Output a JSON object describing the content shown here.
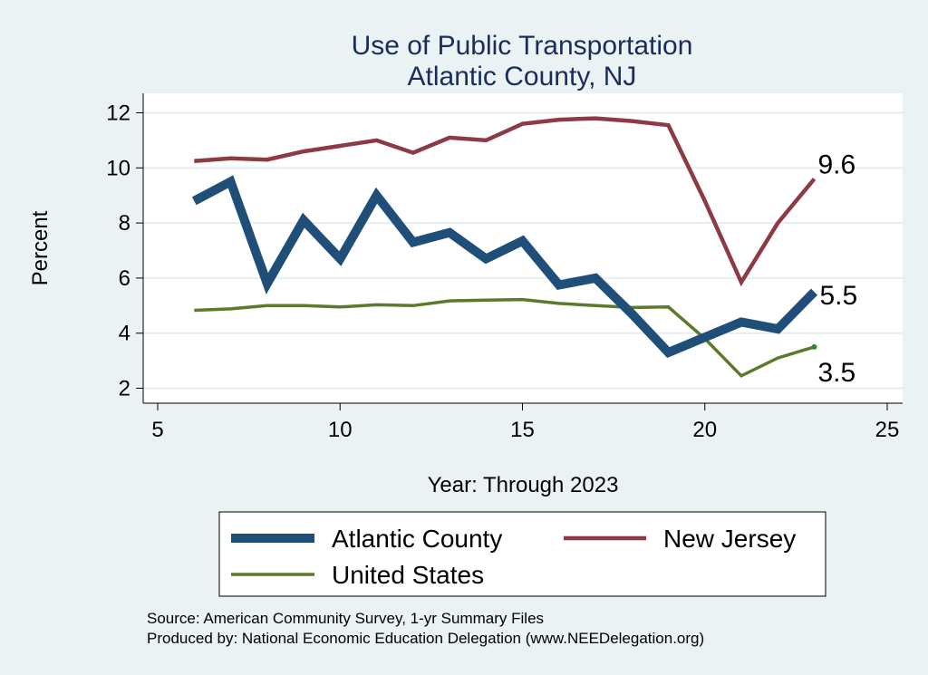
{
  "chart_data": {
    "type": "line",
    "title": "Use of Public Transportation",
    "subtitle": "Atlantic County, NJ",
    "xlabel": "Year: Through 2023",
    "ylabel": "Percent",
    "xlim": [
      5,
      25
    ],
    "ylim": [
      1.5,
      12.5
    ],
    "xticks": [
      5,
      10,
      15,
      20,
      25
    ],
    "yticks": [
      2,
      4,
      6,
      8,
      10,
      12
    ],
    "grid": true,
    "legend_position": "bottom",
    "series": [
      {
        "name": "Atlantic County",
        "color": "#1f4e79",
        "x": [
          6,
          7,
          8,
          9,
          10,
          11,
          12,
          13,
          14,
          15,
          16,
          17,
          18,
          19,
          20,
          21,
          22,
          23
        ],
        "y": [
          8.8,
          9.5,
          5.8,
          8.1,
          6.7,
          9.0,
          7.3,
          7.65,
          6.7,
          7.35,
          5.75,
          6.0,
          4.7,
          3.3,
          3.85,
          4.4,
          4.15,
          5.5
        ],
        "end_label": "5.5"
      },
      {
        "name": "New Jersey",
        "color": "#8e3a44",
        "x": [
          6,
          7,
          8,
          9,
          10,
          11,
          12,
          13,
          14,
          15,
          16,
          17,
          18,
          19,
          20,
          21,
          22,
          23
        ],
        "y": [
          10.25,
          10.35,
          10.3,
          10.6,
          10.8,
          11.0,
          10.55,
          11.1,
          11.0,
          11.6,
          11.75,
          11.8,
          11.7,
          11.55,
          8.8,
          5.85,
          8.0,
          9.6
        ],
        "end_label": "9.6"
      },
      {
        "name": "United States",
        "color": "#5b7a2b",
        "x": [
          6,
          7,
          8,
          9,
          10,
          11,
          12,
          13,
          14,
          15,
          16,
          17,
          18,
          19,
          20,
          21,
          22,
          23
        ],
        "y": [
          4.83,
          4.88,
          5.0,
          5.0,
          4.95,
          5.03,
          5.0,
          5.17,
          5.2,
          5.22,
          5.08,
          5.0,
          4.93,
          4.95,
          3.8,
          2.45,
          3.1,
          3.5
        ],
        "end_label": "3.5"
      }
    ],
    "source": "Source: American Community Survey, 1-yr Summary Files",
    "produced_by": "Produced by: National Economic Education Delegation (www.NEEDelegation.org)"
  }
}
